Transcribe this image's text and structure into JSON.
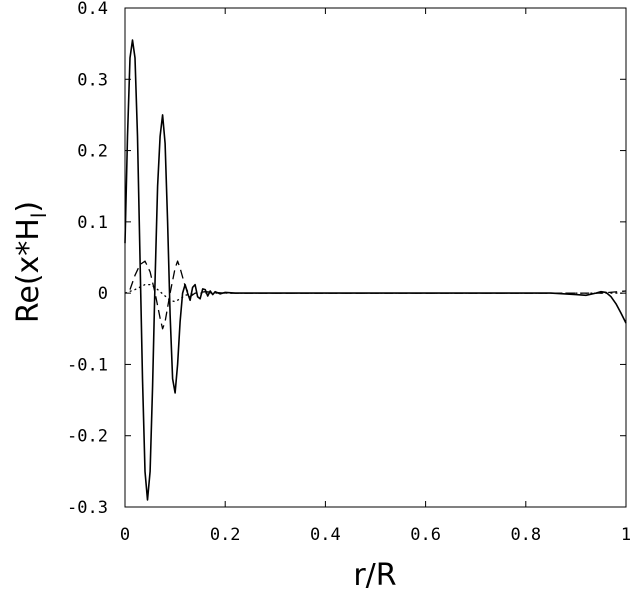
{
  "chart_data": {
    "type": "line",
    "title": "",
    "xlabel": "r/R",
    "ylabel": {
      "main": "Re(x*H",
      "sub": "l",
      "close": ")"
    },
    "xlim": [
      0,
      1
    ],
    "ylim": [
      -0.3,
      0.4
    ],
    "xticks": [
      {
        "value": 0,
        "label": "0"
      },
      {
        "value": 0.2,
        "label": "0.2"
      },
      {
        "value": 0.4,
        "label": "0.4"
      },
      {
        "value": 0.6,
        "label": "0.6"
      },
      {
        "value": 0.8,
        "label": "0.8"
      },
      {
        "value": 1,
        "label": "1"
      }
    ],
    "yticks": [
      {
        "value": -0.3,
        "label": "-0.3"
      },
      {
        "value": -0.2,
        "label": "-0.2"
      },
      {
        "value": -0.1,
        "label": "-0.1"
      },
      {
        "value": 0,
        "label": "0"
      },
      {
        "value": 0.1,
        "label": "0.1"
      },
      {
        "value": 0.2,
        "label": "0.2"
      },
      {
        "value": 0.3,
        "label": "0.3"
      },
      {
        "value": 0.4,
        "label": "0.4"
      }
    ],
    "grid": false,
    "legend": "none",
    "series": [
      {
        "style": "solid",
        "x": [
          0,
          0.005,
          0.01,
          0.015,
          0.02,
          0.025,
          0.03,
          0.035,
          0.04,
          0.045,
          0.05,
          0.055,
          0.06,
          0.065,
          0.07,
          0.075,
          0.08,
          0.085,
          0.09,
          0.095,
          0.1,
          0.105,
          0.11,
          0.115,
          0.12,
          0.125,
          0.13,
          0.135,
          0.14,
          0.145,
          0.15,
          0.155,
          0.16,
          0.165,
          0.17,
          0.175,
          0.18,
          0.19,
          0.2,
          0.22,
          0.25,
          0.3,
          0.4,
          0.5,
          0.6,
          0.7,
          0.8,
          0.85,
          0.9,
          0.92,
          0.94,
          0.95,
          0.96,
          0.97,
          0.98,
          0.99,
          1.0
        ],
        "y": [
          0.07,
          0.22,
          0.33,
          0.355,
          0.33,
          0.22,
          0.05,
          -0.12,
          -0.25,
          -0.29,
          -0.25,
          -0.13,
          0.02,
          0.15,
          0.22,
          0.25,
          0.21,
          0.1,
          -0.03,
          -0.12,
          -0.14,
          -0.1,
          -0.04,
          0.0,
          0.012,
          0.0,
          -0.01,
          0.008,
          0.012,
          -0.005,
          -0.008,
          0.006,
          0.005,
          -0.004,
          0.003,
          -0.002,
          0.002,
          -0.001,
          0.001,
          0.0,
          0.0,
          0.0,
          0.0,
          0.0,
          0.0,
          0.0,
          0.0,
          0.0,
          -0.002,
          -0.003,
          0.0,
          0.002,
          0.001,
          -0.005,
          -0.015,
          -0.028,
          -0.042
        ]
      },
      {
        "style": "dashed",
        "x": [
          0.01,
          0.02,
          0.03,
          0.04,
          0.05,
          0.06,
          0.07,
          0.075,
          0.08,
          0.09,
          0.1,
          0.105,
          0.11,
          0.12,
          0.13,
          0.14,
          0.16,
          0.2,
          0.4,
          0.8,
          0.95,
          1.0
        ],
        "y": [
          0.005,
          0.025,
          0.04,
          0.045,
          0.03,
          0.0,
          -0.035,
          -0.05,
          -0.04,
          0.0,
          0.035,
          0.045,
          0.035,
          0.01,
          -0.005,
          0.0,
          0.002,
          0.0,
          0.0,
          0.0,
          0.0,
          0.003
        ]
      },
      {
        "style": "dotted",
        "x": [
          0.0,
          0.02,
          0.04,
          0.05,
          0.06,
          0.07,
          0.08,
          0.09,
          0.1,
          0.11,
          0.12,
          0.14,
          0.2,
          0.5,
          0.95,
          1.0
        ],
        "y": [
          0.0,
          0.005,
          0.012,
          0.012,
          0.008,
          0.002,
          -0.004,
          -0.01,
          -0.012,
          -0.008,
          -0.003,
          0.0,
          0.0,
          0.0,
          0.0,
          0.0
        ]
      }
    ]
  }
}
